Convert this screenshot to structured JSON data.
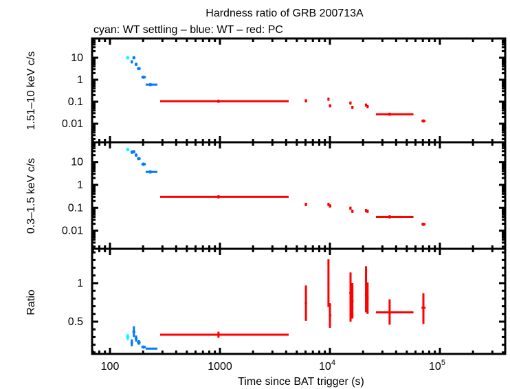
{
  "chart_data": {
    "type": "scatter",
    "title": "Hardness ratio of GRB 200713A",
    "subtitle": "cyan: WT settling – blue: WT – red: PC",
    "xlabel": "Time since BAT trigger (s)",
    "x_scale": "log",
    "xlim": [
      75,
      400000
    ],
    "x_ticks": [
      {
        "value": 100,
        "label": "100"
      },
      {
        "value": 1000,
        "label": "1000"
      },
      {
        "value": 10000,
        "label": "10",
        "exp": "4"
      },
      {
        "value": 100000,
        "label": "10",
        "exp": "5"
      }
    ],
    "colors": {
      "WT settling": "#00ffff",
      "WT": "#0077ff",
      "PC": "#ff0000"
    },
    "panels": [
      {
        "ylabel": "1.51–10 keV c/s",
        "y_scale": "log",
        "ylim": [
          0.0015,
          75
        ],
        "y_ticks": [
          {
            "value": 10,
            "label": "10"
          },
          {
            "value": 1,
            "label": "1"
          },
          {
            "value": 0.1,
            "label": "0.1"
          },
          {
            "value": 0.01,
            "label": "0.01"
          }
        ]
      },
      {
        "ylabel": "0.3–1.5 keV c/s",
        "y_scale": "log",
        "ylim": [
          0.0013,
          75
        ],
        "y_ticks": [
          {
            "value": 10,
            "label": "10"
          },
          {
            "value": 1,
            "label": "1"
          },
          {
            "value": 0.1,
            "label": "0.1"
          },
          {
            "value": 0.01,
            "label": "0.01"
          }
        ]
      },
      {
        "ylabel": "Ratio",
        "y_scale": "linear",
        "ylim": [
          0.08,
          1.45
        ],
        "y_ticks": [
          {
            "value": 1,
            "label": "1"
          },
          {
            "value": 0.5,
            "label": "0.5"
          }
        ]
      }
    ],
    "points": [
      {
        "mode": "WT settling",
        "t": 145,
        "tmin": 140,
        "tmax": 150,
        "hard": 10,
        "soft": 35,
        "ratio": 0.3,
        "ratio_lo": 0.26,
        "ratio_hi": 0.34
      },
      {
        "mode": "WT",
        "t": 165,
        "tmin": 160,
        "tmax": 170,
        "hard": 10,
        "soft": 28,
        "ratio": 0.37,
        "ratio_lo": 0.3,
        "ratio_hi": 0.44
      },
      {
        "mode": "WT",
        "t": 158,
        "tmin": 154,
        "tmax": 162,
        "hard": 6.5,
        "soft": 27,
        "ratio": 0.22,
        "ratio_lo": 0.18,
        "ratio_hi": 0.27
      },
      {
        "mode": "WT",
        "t": 173,
        "tmin": 168,
        "tmax": 178,
        "hard": 5,
        "soft": 20,
        "ratio": 0.28,
        "ratio_lo": 0.24,
        "ratio_hi": 0.32
      },
      {
        "mode": "WT",
        "t": 183,
        "tmin": 176,
        "tmax": 190,
        "hard": 3.2,
        "soft": 14,
        "ratio": 0.23,
        "ratio_lo": 0.2,
        "ratio_hi": 0.26
      },
      {
        "mode": "WT",
        "t": 202,
        "tmin": 193,
        "tmax": 212,
        "hard": 1.3,
        "soft": 8,
        "ratio": 0.17,
        "ratio_lo": 0.15,
        "ratio_hi": 0.19
      },
      {
        "mode": "WT",
        "t": 233,
        "tmin": 211,
        "tmax": 270,
        "hard": 0.6,
        "soft": 3.7,
        "ratio": 0.15,
        "ratio_lo": 0.14,
        "ratio_hi": 0.16
      },
      {
        "mode": "PC",
        "t": 970,
        "tmin": 286,
        "tmax": 4217,
        "hard": 0.105,
        "soft": 0.3,
        "ratio": 0.33,
        "ratio_lo": 0.29,
        "ratio_hi": 0.37
      },
      {
        "mode": "PC",
        "t": 6050,
        "tmin": 5900,
        "tmax": 6200,
        "hard": 0.11,
        "soft": 0.14,
        "ratio": 0.74,
        "ratio_lo": 0.51,
        "ratio_hi": 0.97
      },
      {
        "mode": "PC",
        "t": 9700,
        "tmin": 9500,
        "tmax": 9900,
        "hard": 0.13,
        "soft": 0.14,
        "ratio": 1.0,
        "ratio_lo": 0.69,
        "ratio_hi": 1.31
      },
      {
        "mode": "PC",
        "t": 10000,
        "tmin": 9900,
        "tmax": 10300,
        "hard": 0.065,
        "soft": 0.12,
        "ratio": 0.58,
        "ratio_lo": 0.42,
        "ratio_hi": 0.74
      },
      {
        "mode": "PC",
        "t": 15400,
        "tmin": 15000,
        "tmax": 15700,
        "hard": 0.087,
        "soft": 0.095,
        "ratio": 0.87,
        "ratio_lo": 0.5,
        "ratio_hi": 1.14
      },
      {
        "mode": "PC",
        "t": 16000,
        "tmin": 15700,
        "tmax": 16400,
        "hard": 0.055,
        "soft": 0.07,
        "ratio": 0.77,
        "ratio_lo": 0.54,
        "ratio_hi": 1.0
      },
      {
        "mode": "PC",
        "t": 21300,
        "tmin": 20800,
        "tmax": 21700,
        "hard": 0.07,
        "soft": 0.075,
        "ratio": 0.85,
        "ratio_lo": 0.62,
        "ratio_hi": 1.22
      },
      {
        "mode": "PC",
        "t": 22000,
        "tmin": 21700,
        "tmax": 22500,
        "hard": 0.06,
        "soft": 0.07,
        "ratio": 0.81,
        "ratio_lo": 0.6,
        "ratio_hi": 1.01
      },
      {
        "mode": "PC",
        "t": 34900,
        "tmin": 26200,
        "tmax": 57500,
        "hard": 0.027,
        "soft": 0.04,
        "ratio": 0.62,
        "ratio_lo": 0.46,
        "ratio_hi": 0.79
      },
      {
        "mode": "PC",
        "t": 70800,
        "tmin": 68000,
        "tmax": 74000,
        "hard": 0.0133,
        "soft": 0.019,
        "ratio": 0.68,
        "ratio_lo": 0.47,
        "ratio_hi": 0.87
      }
    ]
  }
}
